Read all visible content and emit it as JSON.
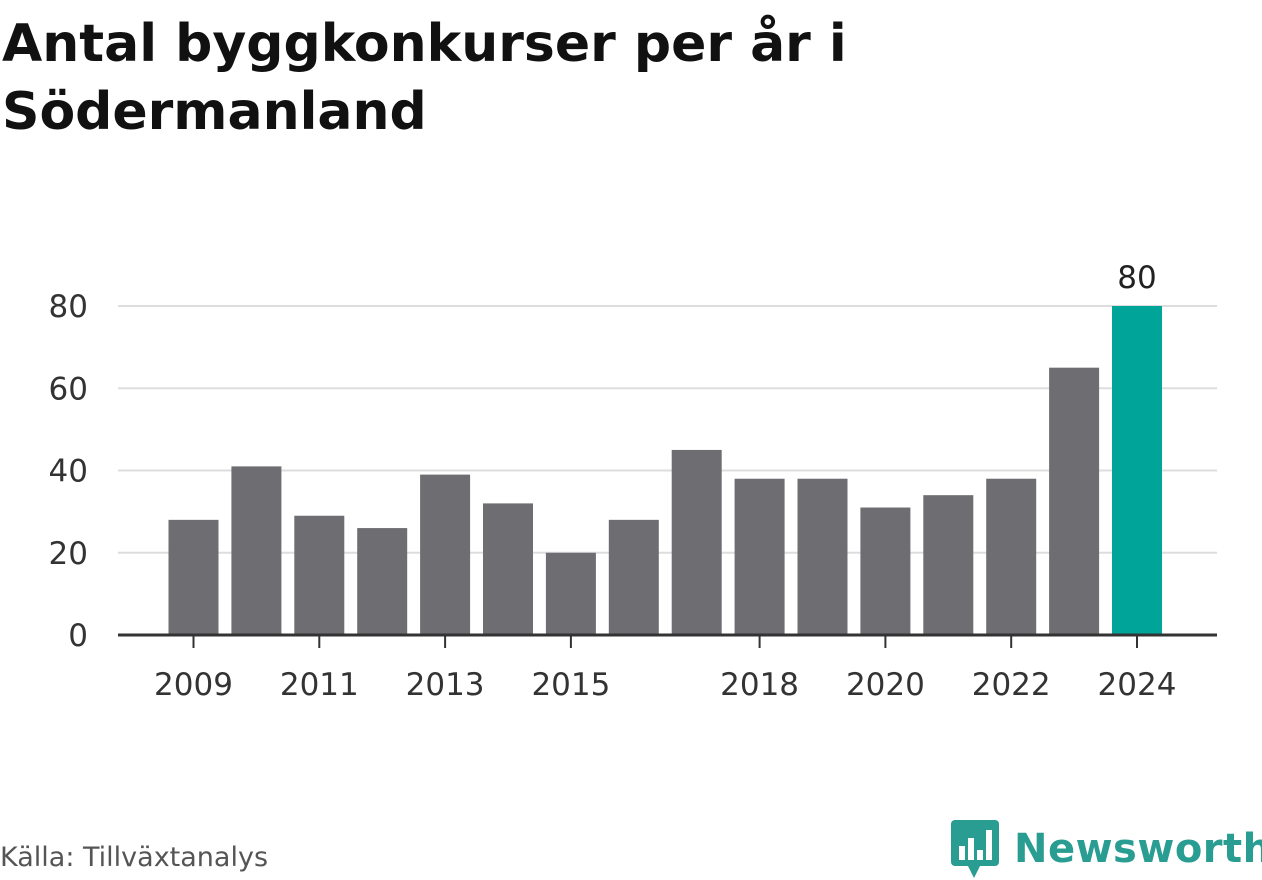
{
  "title": "Antal byggkonkurser per år i Södermanland",
  "source": "Källa: Tillväxtanalys",
  "brand": {
    "name": "Newsworthy",
    "icon": "newsworthy-logo-icon",
    "color": "#2a9d92"
  },
  "chart_data": {
    "type": "bar",
    "categories": [
      "2009",
      "2010",
      "2011",
      "2012",
      "2013",
      "2014",
      "2015",
      "2016",
      "2017",
      "2018",
      "2019",
      "2020",
      "2021",
      "2022",
      "2023",
      "2024"
    ],
    "values": [
      28,
      41,
      29,
      26,
      39,
      32,
      20,
      28,
      45,
      38,
      38,
      31,
      34,
      38,
      65,
      80
    ],
    "xtick_labels": [
      "2009",
      "2011",
      "2013",
      "2015",
      "2018",
      "2020",
      "2022",
      "2024"
    ],
    "yticks": [
      0,
      20,
      40,
      60,
      80
    ],
    "ylim": [
      0,
      80
    ],
    "grid": true,
    "highlight": {
      "category": "2024",
      "label": "80",
      "color": "#00a499"
    },
    "bar_color": "#6e6d72",
    "title": "Antal byggkonkurser per år i Södermanland",
    "xlabel": "",
    "ylabel": ""
  }
}
